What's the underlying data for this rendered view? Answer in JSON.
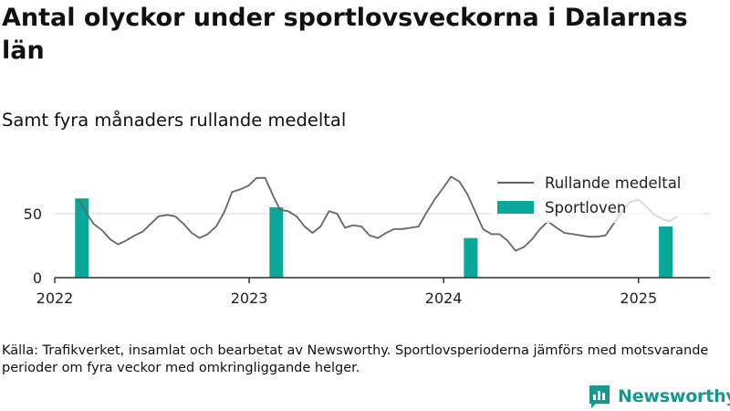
{
  "title": "Antal olyckor under sportlovsveckorna i Dalarnas län",
  "subtitle": "Samt fyra månaders rullande medeltal",
  "source": "Källa: Trafikverket, insamlat och bearbetat av Newsworthy. Sportlovsperioderna jämförs med motsvarande perioder om fyra veckor med omkringliggande helger.",
  "brand": {
    "name": "Newsworthy",
    "logo_icon": "newsworthy-logo-icon"
  },
  "colors": {
    "line": "#666666",
    "bar": "#0aa79b",
    "grid": "#d9d9d9",
    "axis": "#333333",
    "brand": "#139a8e"
  },
  "chart_data": {
    "type": "bar+line",
    "xlabel": "",
    "ylabel": "",
    "ylim": [
      0,
      90
    ],
    "xlim": [
      "2022-01-01",
      "2025-05-15"
    ],
    "y_ticks": [
      0,
      50
    ],
    "x_ticks": [
      {
        "label": "2022",
        "date": "2022-01-01"
      },
      {
        "label": "2023",
        "date": "2023-01-01"
      },
      {
        "label": "2024",
        "date": "2024-01-01"
      },
      {
        "label": "2025",
        "date": "2025-01-01"
      }
    ],
    "grid": "horizontal",
    "legend": {
      "position": "top-right",
      "entries": [
        "Rullande medeltal",
        "Sportloven"
      ]
    },
    "series": [
      {
        "name": "Sportloven",
        "type": "bar",
        "data": [
          {
            "date": "2022-02-21",
            "value": 62
          },
          {
            "date": "2023-02-21",
            "value": 55
          },
          {
            "date": "2024-02-21",
            "value": 31
          },
          {
            "date": "2025-02-21",
            "value": 40
          }
        ]
      },
      {
        "name": "Rullande medeltal",
        "type": "line",
        "data": [
          [
            "2022-02-15",
            61
          ],
          [
            "2022-03-01",
            51
          ],
          [
            "2022-03-15",
            42
          ],
          [
            "2022-03-31",
            37
          ],
          [
            "2022-04-15",
            30
          ],
          [
            "2022-04-30",
            26
          ],
          [
            "2022-05-15",
            29
          ],
          [
            "2022-05-31",
            33
          ],
          [
            "2022-06-15",
            36
          ],
          [
            "2022-06-30",
            42
          ],
          [
            "2022-07-15",
            48
          ],
          [
            "2022-07-31",
            49
          ],
          [
            "2022-08-15",
            48
          ],
          [
            "2022-08-31",
            42
          ],
          [
            "2022-09-15",
            35
          ],
          [
            "2022-09-30",
            31
          ],
          [
            "2022-10-15",
            34
          ],
          [
            "2022-10-31",
            40
          ],
          [
            "2022-11-15",
            51
          ],
          [
            "2022-11-30",
            67
          ],
          [
            "2022-12-15",
            69
          ],
          [
            "2022-12-31",
            72
          ],
          [
            "2023-01-15",
            78
          ],
          [
            "2023-01-31",
            78
          ],
          [
            "2023-02-15",
            64
          ],
          [
            "2023-02-28",
            53
          ],
          [
            "2023-03-15",
            52
          ],
          [
            "2023-03-31",
            48
          ],
          [
            "2023-04-15",
            40
          ],
          [
            "2023-04-30",
            35
          ],
          [
            "2023-05-15",
            40
          ],
          [
            "2023-05-31",
            52
          ],
          [
            "2023-06-15",
            50
          ],
          [
            "2023-06-30",
            39
          ],
          [
            "2023-07-15",
            41
          ],
          [
            "2023-07-31",
            40
          ],
          [
            "2023-08-15",
            33
          ],
          [
            "2023-08-31",
            31
          ],
          [
            "2023-09-15",
            35
          ],
          [
            "2023-09-30",
            38
          ],
          [
            "2023-10-15",
            38
          ],
          [
            "2023-10-31",
            39
          ],
          [
            "2023-11-15",
            40
          ],
          [
            "2023-11-30",
            51
          ],
          [
            "2023-12-15",
            61
          ],
          [
            "2023-12-31",
            70
          ],
          [
            "2024-01-15",
            79
          ],
          [
            "2024-01-31",
            75
          ],
          [
            "2024-02-15",
            65
          ],
          [
            "2024-02-29",
            52
          ],
          [
            "2024-03-15",
            38
          ],
          [
            "2024-03-31",
            34
          ],
          [
            "2024-04-15",
            34
          ],
          [
            "2024-04-30",
            29
          ],
          [
            "2024-05-15",
            21
          ],
          [
            "2024-05-31",
            24
          ],
          [
            "2024-06-15",
            30
          ],
          [
            "2024-06-30",
            38
          ],
          [
            "2024-07-15",
            44
          ],
          [
            "2024-07-31",
            39
          ],
          [
            "2024-08-15",
            35
          ],
          [
            "2024-08-31",
            34
          ],
          [
            "2024-09-15",
            33
          ],
          [
            "2024-09-30",
            32
          ],
          [
            "2024-10-15",
            32
          ],
          [
            "2024-10-31",
            33
          ],
          [
            "2024-11-15",
            42
          ],
          [
            "2024-11-30",
            51
          ],
          [
            "2024-12-15",
            59
          ],
          [
            "2024-12-31",
            61
          ],
          [
            "2025-01-15",
            56
          ],
          [
            "2025-01-31",
            49
          ],
          [
            "2025-02-15",
            46
          ],
          [
            "2025-02-28",
            44
          ],
          [
            "2025-03-15",
            48
          ]
        ]
      }
    ]
  }
}
